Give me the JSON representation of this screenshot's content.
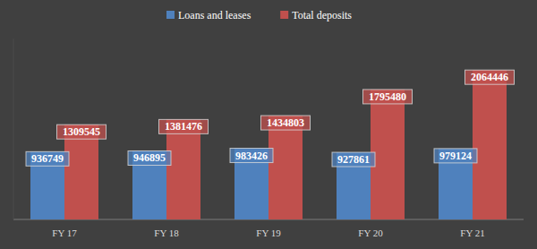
{
  "chart_data": {
    "type": "bar",
    "categories": [
      "FY 17",
      "FY 18",
      "FY 19",
      "FY 20",
      "FY 21"
    ],
    "series": [
      {
        "name": "Loans and leases",
        "color": "#4f81bd",
        "values": [
          936749,
          946895,
          983426,
          927861,
          979124
        ]
      },
      {
        "name": "Total deposits",
        "color": "#c0504d",
        "values": [
          1309545,
          1381476,
          1434803,
          1795480,
          2064446
        ]
      }
    ],
    "ylim": [
      0,
      2500000
    ],
    "grid": false,
    "data_labels": true,
    "tick_labels": "x",
    "legend": "top"
  }
}
